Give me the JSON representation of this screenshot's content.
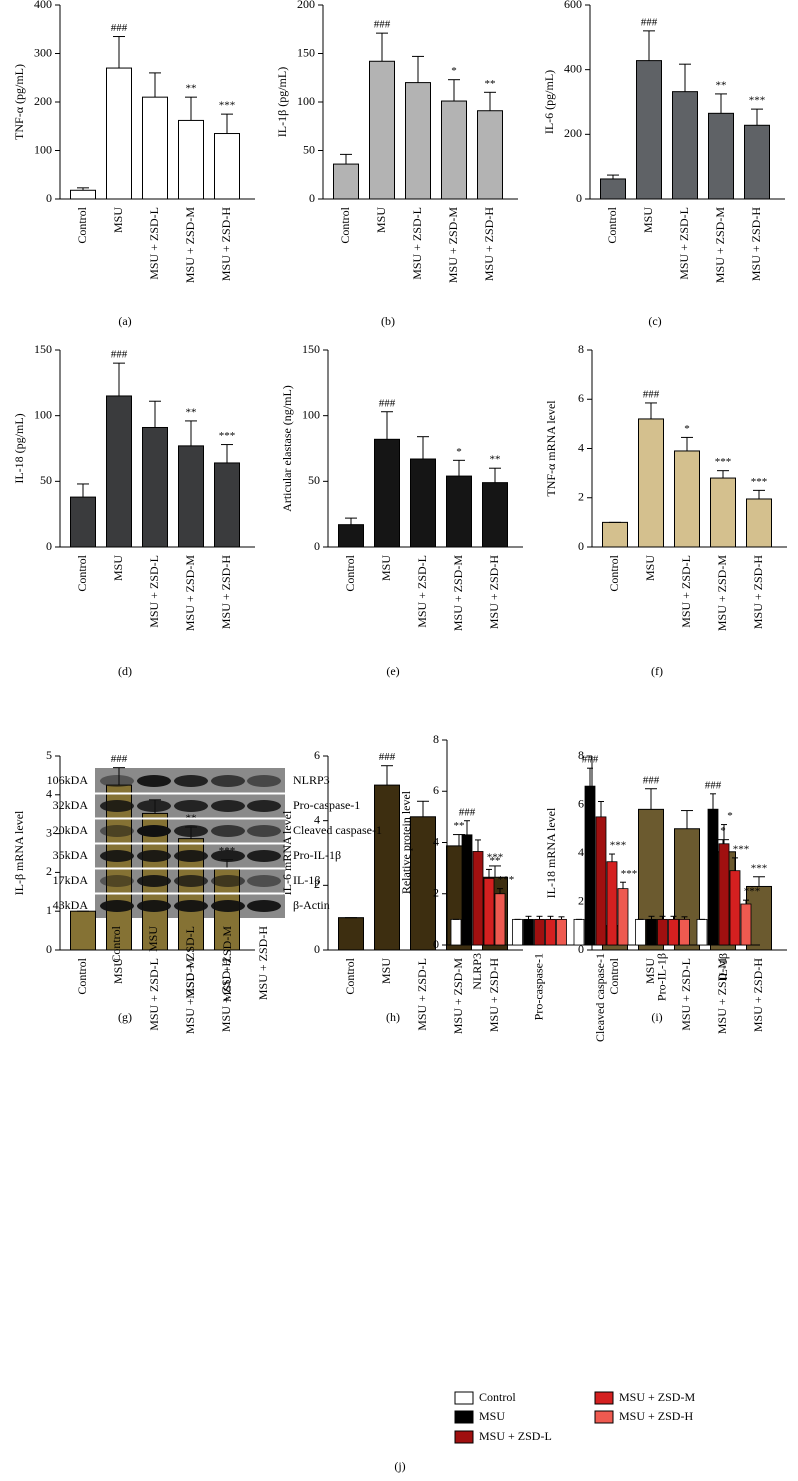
{
  "chart_data": [
    {
      "type": "bar",
      "panel_label": "(a)",
      "y_label": "TNF-α (pg/mL)",
      "categories": [
        "Control",
        "MSU",
        "MSU + ZSD-L",
        "MSU + ZSD-M",
        "MSU + ZSD-H"
      ],
      "values": [
        18,
        270,
        210,
        162,
        135
      ],
      "errors": [
        5,
        65,
        50,
        48,
        40
      ],
      "annotations": [
        null,
        "###",
        null,
        "**",
        "***"
      ],
      "color": "#ffffff",
      "ylim": [
        0,
        400
      ],
      "yticks": [
        0,
        100,
        200,
        300,
        400
      ]
    },
    {
      "type": "bar",
      "panel_label": "(b)",
      "y_label": "IL-1β (pg/mL)",
      "categories": [
        "Control",
        "MSU",
        "MSU + ZSD-L",
        "MSU + ZSD-M",
        "MSU + ZSD-H"
      ],
      "values": [
        36,
        142,
        120,
        101,
        91
      ],
      "errors": [
        10,
        29,
        27,
        22,
        19
      ],
      "annotations": [
        null,
        "###",
        null,
        "*",
        "**"
      ],
      "color": "#b3b3b3",
      "ylim": [
        0,
        200
      ],
      "yticks": [
        0,
        50,
        100,
        150,
        200
      ]
    },
    {
      "type": "bar",
      "panel_label": "(c)",
      "y_label": "IL-6 (pg/mL)",
      "categories": [
        "Control",
        "MSU",
        "MSU + ZSD-L",
        "MSU + ZSD-M",
        "MSU + ZSD-H"
      ],
      "values": [
        62,
        428,
        332,
        265,
        228
      ],
      "errors": [
        12,
        92,
        85,
        60,
        50
      ],
      "annotations": [
        null,
        "###",
        null,
        "**",
        "***"
      ],
      "color": "#5f6266",
      "ylim": [
        0,
        600
      ],
      "yticks": [
        0,
        200,
        400,
        600
      ]
    },
    {
      "type": "bar",
      "panel_label": "(d)",
      "y_label": "IL-18 (pg/mL)",
      "categories": [
        "Control",
        "MSU",
        "MSU + ZSD-L",
        "MSU + ZSD-M",
        "MSU + ZSD-H"
      ],
      "values": [
        38,
        115,
        91,
        77,
        64
      ],
      "errors": [
        10,
        25,
        20,
        19,
        14
      ],
      "annotations": [
        null,
        "###",
        null,
        "**",
        "***"
      ],
      "color": "#3a3b3d",
      "ylim": [
        0,
        150
      ],
      "yticks": [
        0,
        50,
        100,
        150
      ]
    },
    {
      "type": "bar",
      "panel_label": "(e)",
      "y_label": "Articular elastase (ng/mL)",
      "categories": [
        "Control",
        "MSU",
        "MSU + ZSD-L",
        "MSU + ZSD-M",
        "MSU + ZSD-H"
      ],
      "values": [
        17,
        82,
        67,
        54,
        49
      ],
      "errors": [
        5,
        21,
        17,
        12,
        11
      ],
      "annotations": [
        null,
        "###",
        null,
        "*",
        "**"
      ],
      "color": "#151515",
      "ylim": [
        0,
        150
      ],
      "yticks": [
        0,
        50,
        100,
        150
      ]
    },
    {
      "type": "bar",
      "panel_label": "(f)",
      "y_label": "TNF-α mRNA level",
      "categories": [
        "Control",
        "MSU",
        "MSU + ZSD-L",
        "MSU + ZSD-M",
        "MSU + ZSD-H"
      ],
      "values": [
        1,
        5.2,
        3.9,
        2.8,
        1.95
      ],
      "errors": [
        0,
        0.65,
        0.55,
        0.3,
        0.35
      ],
      "annotations": [
        null,
        "###",
        "*",
        "***",
        "***"
      ],
      "color": "#d4c08e",
      "ylim": [
        0,
        8
      ],
      "yticks": [
        0,
        2,
        4,
        6,
        8
      ]
    },
    {
      "type": "bar",
      "panel_label": "(g)",
      "y_label": "IL-β mRNA level",
      "categories": [
        "Control",
        "MSU",
        "MSU + ZSD-L",
        "MSU + ZSD-M",
        "MSU + ZSD-H"
      ],
      "values": [
        1,
        4.25,
        3.52,
        2.87,
        2.08
      ],
      "errors": [
        0,
        0.45,
        0.35,
        0.3,
        0.25
      ],
      "annotations": [
        null,
        "###",
        null,
        "**",
        "***"
      ],
      "color": "#857234",
      "ylim": [
        0,
        5
      ],
      "yticks": [
        0,
        1,
        2,
        3,
        4,
        5
      ]
    },
    {
      "type": "bar",
      "panel_label": "(h)",
      "y_label": "IL-6 mRNA level",
      "categories": [
        "Control",
        "MSU",
        "MSU + ZSD-L",
        "MSU + ZSD-M",
        "MSU + ZSD-H"
      ],
      "values": [
        1,
        5.1,
        4.12,
        3.22,
        2.25
      ],
      "errors": [
        0,
        0.6,
        0.48,
        0.35,
        0.35
      ],
      "annotations": [
        null,
        "###",
        null,
        "**",
        "***"
      ],
      "color": "#3d2e10",
      "ylim": [
        0,
        6
      ],
      "yticks": [
        0,
        2,
        4,
        6
      ]
    },
    {
      "type": "bar",
      "panel_label": "(i)",
      "y_label": "IL-18 mRNA level",
      "categories": [
        "Control",
        "MSU",
        "MSU + ZSD-L",
        "MSU + ZSD-M",
        "MSU + ZSD-H"
      ],
      "values": [
        1,
        5.8,
        5.0,
        4.05,
        2.62
      ],
      "errors": [
        0,
        0.85,
        0.75,
        0.5,
        0.4
      ],
      "annotations": [
        null,
        "###",
        null,
        "*",
        "***"
      ],
      "color": "#6b5a2f",
      "ylim": [
        0,
        8
      ],
      "yticks": [
        0,
        2,
        4,
        6,
        8
      ]
    },
    {
      "type": "grouped_bar",
      "panel_label": "(j)",
      "y_label": "Relative protein level",
      "categories": [
        "NLRP3",
        "Pro-caspase-1",
        "Cleaved caspase-1",
        "Pro-IL-1β",
        "IL-1β"
      ],
      "ylim": [
        0,
        8
      ],
      "yticks": [
        0,
        2,
        4,
        6,
        8
      ],
      "series": [
        {
          "name": "Control",
          "color": "#ffffff",
          "values": [
            1,
            1,
            1,
            1,
            1
          ],
          "errors": [
            0,
            0,
            0,
            0,
            0
          ],
          "annotations": [
            null,
            null,
            null,
            null,
            null
          ]
        },
        {
          "name": "MSU",
          "color": "#000000",
          "values": [
            4.3,
            1,
            6.2,
            1,
            5.3
          ],
          "errors": [
            0.55,
            0.12,
            0.7,
            0.12,
            0.6
          ],
          "annotations": [
            "###",
            null,
            "###",
            null,
            "###"
          ]
        },
        {
          "name": "MSU + ZSD-L",
          "color": "#a01010",
          "values": [
            3.65,
            1,
            5.0,
            1,
            3.95
          ],
          "errors": [
            0.45,
            0.12,
            0.6,
            0.12,
            0.75
          ],
          "annotations": [
            null,
            null,
            null,
            null,
            "*"
          ]
        },
        {
          "name": "MSU + ZSD-M",
          "color": "#d42020",
          "values": [
            2.6,
            1,
            3.25,
            1,
            2.9
          ],
          "errors": [
            0.35,
            0.12,
            0.3,
            0.12,
            0.5
          ],
          "annotations": [
            "**",
            null,
            "***",
            null,
            "***"
          ]
        },
        {
          "name": "MSU + ZSD-H",
          "color": "#ee5a50",
          "values": [
            2.0,
            1,
            2.2,
            1,
            1.6
          ],
          "errors": [
            0.2,
            0.1,
            0.25,
            0.1,
            0.15
          ],
          "annotations": [
            "***",
            null,
            "***",
            null,
            "***"
          ]
        }
      ]
    }
  ],
  "blot": {
    "kda": [
      "106kDA",
      "32kDA",
      "20kDA",
      "35kDA",
      "17kDA",
      "43kDA"
    ],
    "proteins": [
      "NLRP3",
      "Pro-caspase-1",
      "Cleaved caspase-1",
      "Pro-IL-1β",
      "IL-1β",
      "β-Actin"
    ],
    "lanes": [
      "Control",
      "MSU",
      "MSU + ZSD-L",
      "MSU + ZSD-M",
      "MSU + ZSD-H"
    ]
  }
}
